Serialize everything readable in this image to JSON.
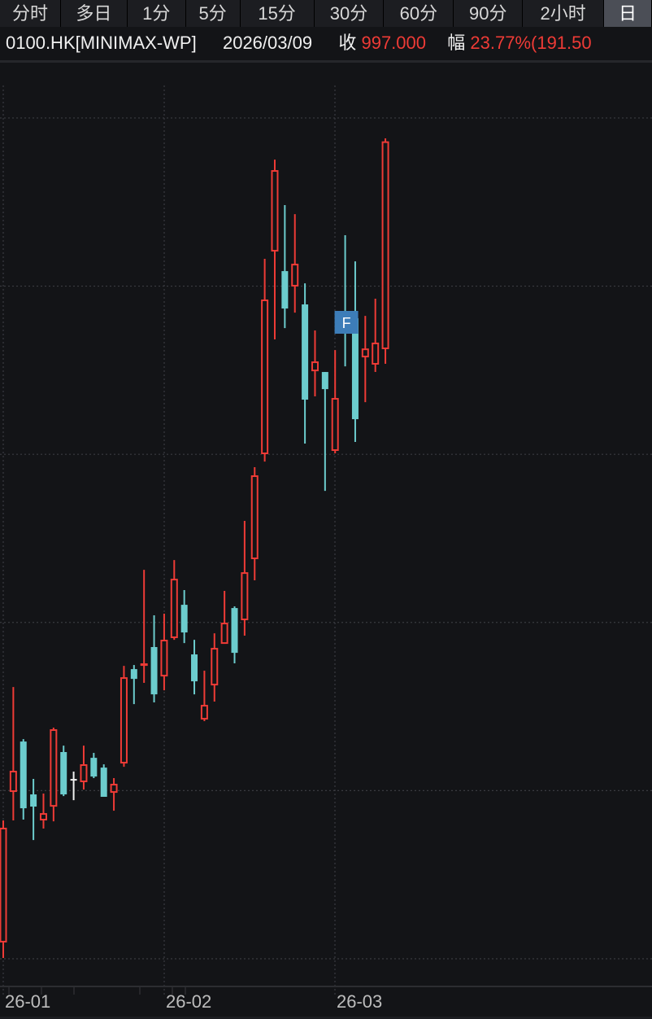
{
  "tabs": [
    {
      "label": "分时",
      "selected": false
    },
    {
      "label": "多日",
      "selected": false
    },
    {
      "label": "1分",
      "selected": false
    },
    {
      "label": "5分",
      "selected": false
    },
    {
      "label": "15分",
      "selected": false
    },
    {
      "label": "30分",
      "selected": false
    },
    {
      "label": "60分",
      "selected": false
    },
    {
      "label": "90分",
      "selected": false
    },
    {
      "label": "2小时",
      "selected": false
    },
    {
      "label": "日",
      "selected": true
    }
  ],
  "header": {
    "symbol": "0100.HK[MINIMAX-WP]",
    "date": "2026/03/09",
    "close_label": "收",
    "close_value": "997.000",
    "change_label": "幅",
    "change_value": "23.77%(191.50"
  },
  "colors": {
    "up": "#ee3b36",
    "down": "#6ccccd",
    "doji": "#f0f0f0",
    "grid": "#3a3b40",
    "marker": "#3d7db8"
  },
  "chart_data": {
    "type": "candlestick",
    "title": "",
    "ylim": [
      80,
      1120
    ],
    "y_gridlines": [
      220,
      380,
      540,
      700,
      860,
      1020
    ],
    "grid": true,
    "x_tick_labels": [
      {
        "label": "26-01",
        "index": 0
      },
      {
        "label": "26-02",
        "index": 16
      },
      {
        "label": "26-03",
        "index": 33
      }
    ],
    "markers": [
      {
        "label": "F",
        "index": 34
      }
    ],
    "candles": [
      {
        "o": 236.3,
        "h": 351.6,
        "l": 220.8,
        "c": 343.9
      },
      {
        "o": 379.5,
        "h": 478.6,
        "l": 351.6,
        "c": 398.1
      },
      {
        "o": 426.7,
        "h": 429.0,
        "l": 352.4,
        "c": 363.2
      },
      {
        "o": 376.4,
        "h": 391.1,
        "l": 333.0,
        "c": 364.8
      },
      {
        "o": 352.4,
        "h": 377.2,
        "l": 343.9,
        "c": 357.8
      },
      {
        "o": 365.5,
        "h": 439.9,
        "l": 350.8,
        "c": 437.6
      },
      {
        "o": 416.7,
        "h": 422.8,
        "l": 374.8,
        "c": 376.4
      },
      {
        "o": 390.3,
        "h": 398.1,
        "l": 370.9,
        "c": 390.3
      },
      {
        "o": 388.8,
        "h": 422.8,
        "l": 381.0,
        "c": 404.3
      },
      {
        "o": 411.2,
        "h": 415.9,
        "l": 391.9,
        "c": 393.4
      },
      {
        "o": 401.9,
        "h": 405.0,
        "l": 374.1,
        "c": 374.1
      },
      {
        "o": 378.7,
        "h": 391.9,
        "l": 360.9,
        "c": 385.7
      },
      {
        "o": 406.6,
        "h": 498.7,
        "l": 402.7,
        "c": 487.1
      },
      {
        "o": 495.6,
        "h": 499.5,
        "l": 462.3,
        "c": 486.3
      },
      {
        "o": 499.5,
        "h": 590.1,
        "l": 482.5,
        "c": 500.3
      },
      {
        "o": 516.6,
        "h": 546.8,
        "l": 463.9,
        "c": 471.6
      },
      {
        "o": 489.4,
        "h": 548.3,
        "l": 475.5,
        "c": 522.8
      },
      {
        "o": 525.9,
        "h": 599.4,
        "l": 523.5,
        "c": 580.8
      },
      {
        "o": 556.8,
        "h": 570.8,
        "l": 520.4,
        "c": 530.5
      },
      {
        "o": 509.6,
        "h": 523.5,
        "l": 471.6,
        "c": 484.0
      },
      {
        "o": 448.4,
        "h": 494.1,
        "l": 446.1,
        "c": 460.8
      },
      {
        "o": 480.9,
        "h": 529.7,
        "l": 464.7,
        "c": 515.0
      },
      {
        "o": 520.4,
        "h": 570.0,
        "l": 520.4,
        "c": 539.0
      },
      {
        "o": 553.7,
        "h": 555.3,
        "l": 501.1,
        "c": 511.1
      },
      {
        "o": 542.9,
        "h": 636.6,
        "l": 527.4,
        "c": 587.0
      },
      {
        "o": 601.0,
        "h": 687.7,
        "l": 580.1,
        "c": 679.2
      },
      {
        "o": 700.9,
        "h": 886.0,
        "l": 693.1,
        "c": 846.5
      },
      {
        "o": 893.7,
        "h": 980.4,
        "l": 809.3,
        "c": 969.6
      },
      {
        "o": 874.3,
        "h": 937.1,
        "l": 820.1,
        "c": 838.7
      },
      {
        "o": 860.4,
        "h": 928.5,
        "l": 834.8,
        "c": 880.5
      },
      {
        "o": 842.6,
        "h": 862.7,
        "l": 710.2,
        "c": 752.0
      },
      {
        "o": 779.8,
        "h": 817.8,
        "l": 755.1,
        "c": 787.6
      },
      {
        "o": 778.3,
        "h": 778.3,
        "l": 665.2,
        "c": 762.0
      },
      {
        "o": 704.0,
        "h": 799.2,
        "l": 700.9,
        "c": 752.8
      },
      {
        "o": 829.4,
        "h": 908.4,
        "l": 783.7,
        "c": 820.1
      },
      {
        "o": 829.4,
        "h": 883.6,
        "l": 711.7,
        "c": 733.4
      },
      {
        "o": 793.0,
        "h": 831.7,
        "l": 749.6,
        "c": 799.9
      },
      {
        "o": 786.1,
        "h": 848.0,
        "l": 778.3,
        "c": 805.5
      },
      {
        "o": 800.8,
        "h": 1000.6,
        "l": 786.1,
        "c": 997.0
      }
    ]
  }
}
